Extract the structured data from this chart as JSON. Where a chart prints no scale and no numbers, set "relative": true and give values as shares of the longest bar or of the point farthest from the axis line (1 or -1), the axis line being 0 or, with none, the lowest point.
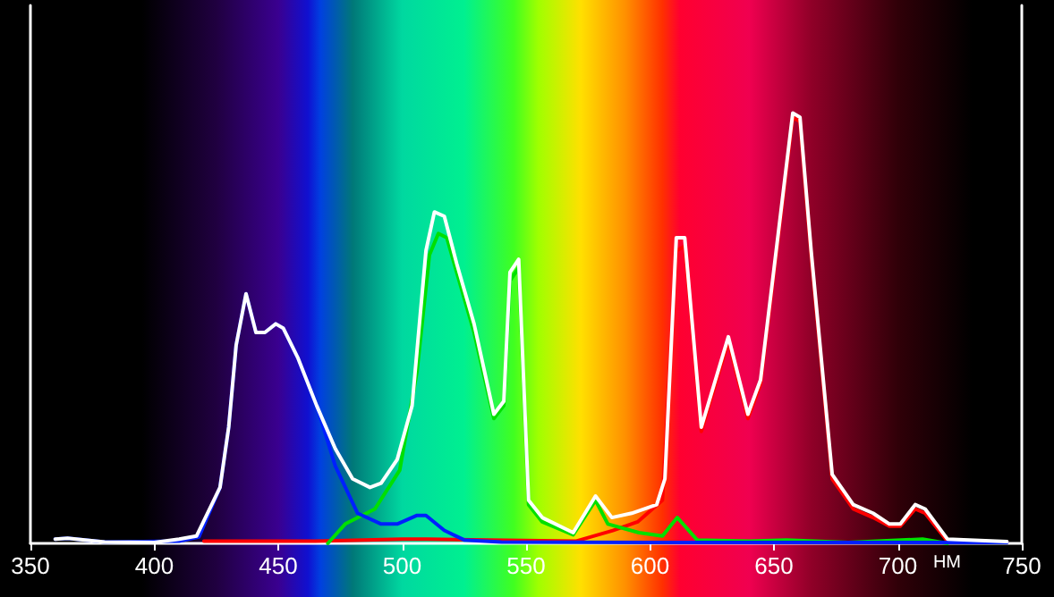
{
  "chart_data": {
    "type": "line",
    "xlabel": "НМ",
    "relative": true,
    "xlim": [
      350,
      750
    ],
    "xticks": [
      350,
      400,
      450,
      500,
      550,
      600,
      650,
      700,
      750
    ],
    "grid": false,
    "marker": "none",
    "line_style": "solid",
    "series": [
      {
        "color": "#ffffff",
        "x": [
          360,
          365,
          380,
          400,
          410,
          417,
          426.5,
          430,
          433,
          437,
          441,
          444.6,
          449,
          452,
          458,
          465.5,
          473,
          480,
          487,
          491.5,
          498,
          504,
          509.6,
          513,
          517,
          522,
          529,
          537,
          541,
          543.5,
          547,
          551,
          556.5,
          569,
          578,
          584.6,
          592.6,
          602.7,
          606,
          610.6,
          614,
          620.7,
          631.6,
          639.5,
          644.6,
          653,
          657.6,
          660.5,
          665,
          673.5,
          682,
          690,
          696.6,
          701,
          707,
          711,
          720,
          744
        ],
        "values": [
          0.01,
          0.012,
          0.003,
          0.002,
          0.01,
          0.017,
          0.13,
          0.27,
          0.46,
          0.58,
          0.49,
          0.49,
          0.51,
          0.5,
          0.43,
          0.32,
          0.22,
          0.15,
          0.13,
          0.14,
          0.195,
          0.32,
          0.68,
          0.77,
          0.76,
          0.65,
          0.51,
          0.3,
          0.33,
          0.63,
          0.66,
          0.1,
          0.06,
          0.025,
          0.11,
          0.06,
          0.07,
          0.09,
          0.15,
          0.71,
          0.71,
          0.27,
          0.48,
          0.3,
          0.38,
          0.78,
          1,
          0.99,
          0.68,
          0.16,
          0.09,
          0.07,
          0.045,
          0.045,
          0.09,
          0.08,
          0.01,
          0.004
        ]
      },
      {
        "color": "#ff0000",
        "x": [
          420,
          465,
          500,
          510,
          570,
          585,
          595,
          605,
          610.6,
          614,
          620.7,
          631.6,
          639.5,
          644.6,
          653,
          657.6,
          660.5,
          665,
          673.5,
          682,
          690,
          696.6,
          701,
          707,
          711,
          720,
          744
        ],
        "values": [
          0.005,
          0.005,
          0.01,
          0.01,
          0.005,
          0.03,
          0.05,
          0.1,
          0.68,
          0.69,
          0.26,
          0.47,
          0.29,
          0.37,
          0.77,
          0.99,
          0.98,
          0.67,
          0.15,
          0.08,
          0.06,
          0.04,
          0.04,
          0.08,
          0.07,
          0.005,
          0.003
        ]
      },
      {
        "color": "#00e000",
        "x": [
          470,
          477,
          489,
          499,
          506,
          511,
          514.6,
          518,
          522,
          529,
          537,
          541,
          543.5,
          547,
          551,
          556.5,
          569,
          578,
          583,
          595.5,
          605,
          611,
          619,
          640,
          655,
          680,
          710,
          720
        ],
        "values": [
          0,
          0.045,
          0.08,
          0.17,
          0.4,
          0.67,
          0.72,
          0.71,
          0.63,
          0.49,
          0.29,
          0.32,
          0.61,
          0.64,
          0.09,
          0.05,
          0.02,
          0.1,
          0.045,
          0.025,
          0.017,
          0.06,
          0.008,
          0.005,
          0.008,
          0.002,
          0.01,
          0
        ]
      },
      {
        "color": "#0020ff",
        "x": [
          360,
          365,
          380,
          410,
          418,
          426.5,
          430,
          433,
          437,
          441,
          444.6,
          449,
          452,
          458,
          465.5,
          473,
          482,
          491.5,
          498,
          506,
          509.6,
          517,
          525,
          540,
          600,
          700,
          744
        ],
        "values": [
          0.01,
          0.012,
          0.003,
          0.005,
          0.015,
          0.13,
          0.27,
          0.46,
          0.58,
          0.49,
          0.49,
          0.51,
          0.5,
          0.43,
          0.32,
          0.18,
          0.07,
          0.045,
          0.045,
          0.065,
          0.065,
          0.03,
          0.008,
          0.003,
          0.002,
          0.002,
          0.002
        ]
      }
    ]
  }
}
